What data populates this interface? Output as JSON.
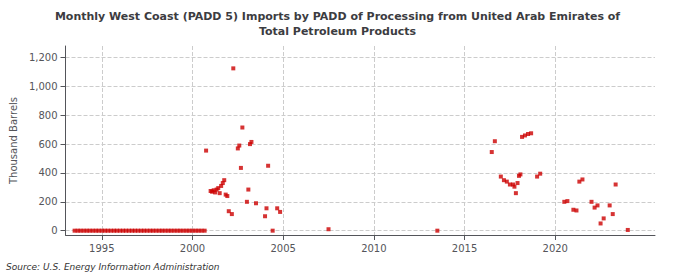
{
  "chart_data": {
    "type": "scatter",
    "title": "Monthly West Coast (PADD 5) Imports by PADD of Processing from United Arab Emirates of\nTotal Petroleum Products",
    "ylabel": "Thousand Barrels",
    "source": "Source: U.S. Energy Information Administration",
    "color": "#cc0000",
    "marker": "square",
    "grid": true,
    "xlim": [
      1993.0,
      2025.5
    ],
    "ylim": [
      -30,
      1280
    ],
    "xticks": [
      1995,
      2000,
      2005,
      2010,
      2015,
      2020
    ],
    "yticks": [
      0,
      200,
      400,
      600,
      800,
      {
        "value": 1000,
        "label": "1,000"
      },
      {
        "value": 1200,
        "label": "1,200"
      }
    ],
    "x": [
      1993.5,
      1993.67,
      1993.83,
      1994.0,
      1994.17,
      1994.33,
      1994.5,
      1994.67,
      1994.83,
      1995.0,
      1995.17,
      1995.33,
      1995.5,
      1995.67,
      1995.83,
      1996.0,
      1996.17,
      1996.33,
      1996.5,
      1996.67,
      1996.83,
      1997.0,
      1997.17,
      1997.33,
      1997.5,
      1997.67,
      1997.83,
      1998.0,
      1998.17,
      1998.33,
      1998.5,
      1998.67,
      1998.83,
      1999.0,
      1999.17,
      1999.33,
      1999.5,
      1999.67,
      1999.83,
      2000.0,
      2000.17,
      2000.33,
      2000.5,
      2000.67,
      2000.75,
      2001.0,
      2001.08,
      2001.17,
      2001.25,
      2001.33,
      2001.42,
      2001.5,
      2001.58,
      2001.67,
      2001.75,
      2001.83,
      2001.92,
      2002.0,
      2002.17,
      2002.25,
      2002.5,
      2002.58,
      2002.67,
      2002.75,
      2003.0,
      2003.08,
      2003.17,
      2003.25,
      2003.5,
      2004.0,
      2004.08,
      2004.17,
      2004.42,
      2004.67,
      2004.83,
      2007.5,
      2013.5,
      2016.5,
      2016.67,
      2017.0,
      2017.17,
      2017.33,
      2017.5,
      2017.67,
      2017.75,
      2017.83,
      2017.92,
      2018.0,
      2018.08,
      2018.17,
      2018.33,
      2018.5,
      2018.67,
      2019.0,
      2019.17,
      2020.5,
      2020.67,
      2021.0,
      2021.17,
      2021.33,
      2021.5,
      2022.0,
      2022.17,
      2022.33,
      2022.5,
      2022.67,
      2023.0,
      2023.17,
      2023.33,
      2024.0
    ],
    "values": [
      0,
      0,
      0,
      0,
      0,
      0,
      0,
      0,
      0,
      0,
      0,
      0,
      0,
      0,
      0,
      0,
      0,
      0,
      0,
      0,
      0,
      0,
      0,
      0,
      0,
      0,
      0,
      0,
      0,
      0,
      0,
      0,
      0,
      0,
      0,
      0,
      0,
      0,
      0,
      0,
      0,
      0,
      0,
      0,
      555,
      275,
      270,
      280,
      265,
      285,
      295,
      260,
      310,
      330,
      350,
      250,
      240,
      135,
      115,
      1125,
      570,
      590,
      435,
      715,
      200,
      285,
      600,
      615,
      190,
      100,
      155,
      450,
      0,
      155,
      130,
      10,
      0,
      545,
      620,
      375,
      350,
      340,
      320,
      320,
      305,
      260,
      330,
      380,
      390,
      650,
      660,
      670,
      675,
      375,
      395,
      200,
      205,
      145,
      140,
      340,
      355,
      200,
      160,
      175,
      50,
      85,
      175,
      115,
      320,
      5
    ]
  }
}
